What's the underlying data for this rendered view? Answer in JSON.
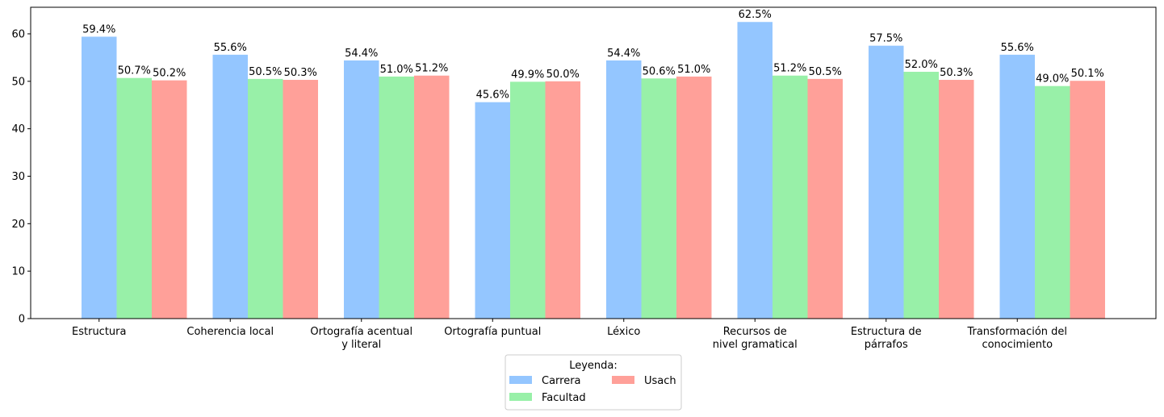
{
  "chart_data": {
    "type": "bar",
    "categories": [
      [
        "Estructura"
      ],
      [
        "Coherencia local"
      ],
      [
        "Ortografía acentual",
        "y literal"
      ],
      [
        "Ortografía puntual"
      ],
      [
        "Léxico"
      ],
      [
        "Recursos de",
        "nivel gramatical"
      ],
      [
        "Estructura de",
        "párrafos"
      ],
      [
        "Transformación del",
        "conocimiento"
      ]
    ],
    "series": [
      {
        "name": "Carrera",
        "color": "#94c6ff",
        "values": [
          59.4,
          55.6,
          54.4,
          45.6,
          54.4,
          62.5,
          57.5,
          55.6
        ],
        "labels": [
          "59.4%",
          "55.6%",
          "54.4%",
          "45.6%",
          "54.4%",
          "62.5%",
          "57.5%",
          "55.6%"
        ]
      },
      {
        "name": "Facultad",
        "color": "#98f0a8",
        "values": [
          50.7,
          50.5,
          51.0,
          49.9,
          50.6,
          51.2,
          52.0,
          49.0
        ],
        "labels": [
          "50.7%",
          "50.5%",
          "51.0%",
          "49.9%",
          "50.6%",
          "51.2%",
          "52.0%",
          "49.0%"
        ]
      },
      {
        "name": "Usach",
        "color": "#ffa099",
        "values": [
          50.2,
          50.3,
          51.2,
          50.0,
          51.0,
          50.5,
          50.3,
          50.1
        ],
        "labels": [
          "50.2%",
          "50.3%",
          "51.2%",
          "50.0%",
          "51.0%",
          "50.5%",
          "50.3%",
          "50.1%"
        ]
      }
    ],
    "title": "",
    "xlabel": "",
    "ylabel": "",
    "ylim": [
      0,
      65.6
    ],
    "yticks": [
      "0",
      "10",
      "20",
      "30",
      "40",
      "50",
      "60"
    ],
    "grid": false,
    "legend": {
      "title": "Leyenda:",
      "placement": "bottom-center"
    }
  }
}
